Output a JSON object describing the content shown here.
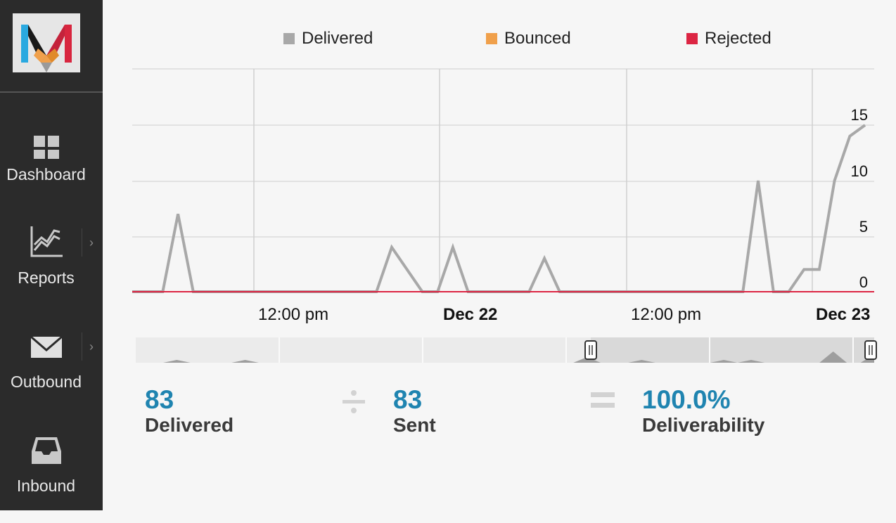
{
  "sidebar": {
    "items": [
      {
        "label": "Dashboard",
        "icon": "dashboard-grid-icon"
      },
      {
        "label": "Reports",
        "icon": "reports-chart-icon"
      },
      {
        "label": "Outbound",
        "icon": "envelope-icon"
      },
      {
        "label": "Inbound",
        "icon": "inbox-tray-icon"
      }
    ],
    "chevron": "›"
  },
  "colors": {
    "delivered": "#a8a8a8",
    "bounced": "#f0a04b",
    "rejected": "#dc2543",
    "accent": "#1f84b0"
  },
  "chart_data": {
    "type": "line",
    "legend_position": "top",
    "series": [
      {
        "name": "Delivered",
        "values": [
          [
            0,
            0
          ],
          [
            1,
            0
          ],
          [
            1.5,
            7
          ],
          [
            2,
            0
          ],
          [
            3,
            0
          ],
          [
            4,
            0
          ],
          [
            5,
            0
          ],
          [
            6,
            0
          ],
          [
            7,
            0
          ],
          [
            8,
            0
          ],
          [
            8.5,
            4
          ],
          [
            9.5,
            0
          ],
          [
            10,
            0
          ],
          [
            10.5,
            4
          ],
          [
            11,
            0
          ],
          [
            12,
            0
          ],
          [
            13,
            0
          ],
          [
            13.5,
            3
          ],
          [
            14,
            0
          ],
          [
            15,
            0
          ],
          [
            16,
            0
          ],
          [
            17,
            0
          ],
          [
            18,
            0
          ],
          [
            19,
            0
          ],
          [
            20,
            0
          ],
          [
            20.5,
            10
          ],
          [
            21,
            0
          ],
          [
            21.5,
            0
          ],
          [
            22,
            2
          ],
          [
            22.5,
            2
          ],
          [
            23,
            10
          ],
          [
            23.5,
            14
          ],
          [
            24,
            15
          ]
        ]
      },
      {
        "name": "Bounced",
        "values": [
          [
            0,
            0
          ],
          [
            24,
            0
          ]
        ]
      },
      {
        "name": "Rejected",
        "values": [
          [
            0,
            0
          ],
          [
            24,
            0
          ]
        ]
      }
    ],
    "x_ticks": [
      {
        "label": "12:00 pm",
        "bold": false
      },
      {
        "label": "Dec 22",
        "bold": true
      },
      {
        "label": "12:00 pm",
        "bold": false
      },
      {
        "label": "Dec 23",
        "bold": true
      }
    ],
    "y_ticks": [
      "15",
      "10",
      "5",
      "0"
    ],
    "ylim": [
      0,
      15
    ],
    "grid": true
  },
  "navigator": {
    "sparkline": [
      0,
      0,
      0,
      1,
      0,
      0,
      0,
      0,
      1,
      0,
      0,
      0,
      0,
      0,
      0,
      0,
      0,
      0,
      0,
      0,
      0,
      0,
      0,
      0,
      0,
      0,
      0,
      0,
      0,
      0,
      0,
      0,
      0,
      2,
      0,
      0,
      0,
      1,
      0,
      0,
      0,
      0,
      0,
      1,
      0,
      1,
      0,
      0,
      0,
      0,
      0,
      4,
      0,
      0,
      3
    ]
  },
  "stats": {
    "delivered": {
      "value": "83",
      "label": "Delivered"
    },
    "sent": {
      "value": "83",
      "label": "Sent"
    },
    "deliverability": {
      "value": "100.0%",
      "label": "Deliverability"
    }
  }
}
